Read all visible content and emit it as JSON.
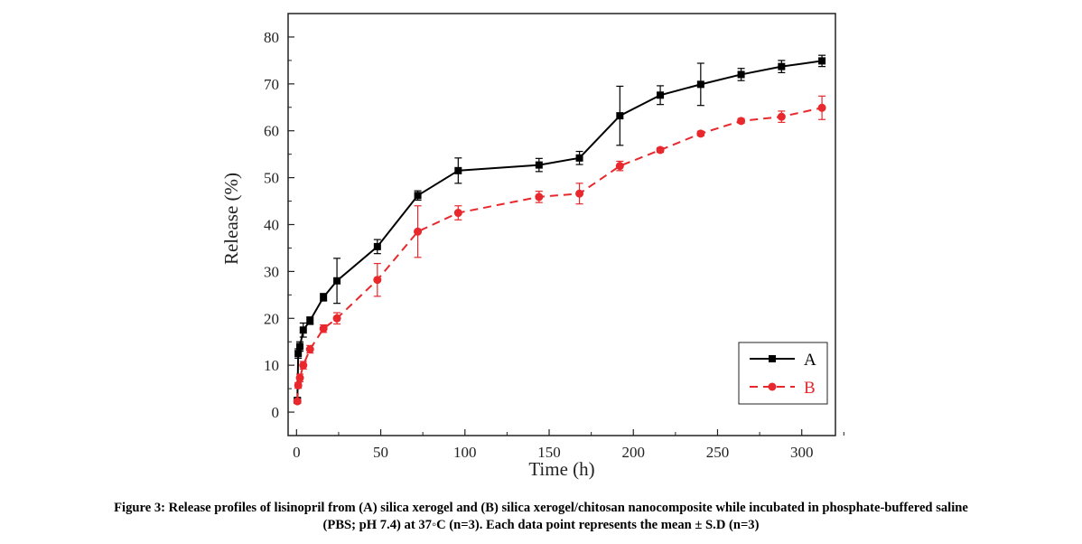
{
  "chart_data": {
    "type": "line",
    "title": "",
    "xlabel": "Time (h)",
    "ylabel": "Release (%)",
    "xlim": [
      -5,
      320
    ],
    "ylim": [
      -5,
      85
    ],
    "xticks": [
      0,
      50,
      100,
      150,
      200,
      250,
      300
    ],
    "yticks": [
      0,
      10,
      20,
      30,
      40,
      50,
      60,
      70,
      80
    ],
    "grid": false,
    "legend_position": "bottom-right",
    "series": [
      {
        "name": "A",
        "color": "#000000",
        "line_style": "solid",
        "marker": "square",
        "x": [
          0.5,
          1,
          2,
          4,
          8,
          16,
          24,
          48,
          72,
          96,
          144,
          168,
          192,
          216,
          240,
          264,
          288,
          312
        ],
        "y": [
          2.5,
          12.5,
          14.0,
          17.5,
          19.5,
          24.5,
          28.0,
          35.3,
          46.2,
          51.5,
          52.7,
          54.2,
          63.2,
          67.6,
          69.9,
          72.0,
          73.7,
          74.9
        ],
        "err": [
          0.5,
          1.0,
          1.0,
          1.5,
          0.8,
          0.8,
          4.8,
          1.5,
          1.0,
          2.7,
          1.4,
          1.4,
          6.3,
          2.0,
          4.5,
          1.3,
          1.3,
          1.2
        ]
      },
      {
        "name": "B",
        "color": "#e8282c",
        "line_style": "dashed",
        "marker": "circle",
        "x": [
          0.5,
          1,
          2,
          4,
          8,
          16,
          24,
          48,
          72,
          96,
          144,
          168,
          192,
          216,
          240,
          264,
          288,
          312
        ],
        "y": [
          2.3,
          5.7,
          7.3,
          10.0,
          13.4,
          17.8,
          20.0,
          28.2,
          38.5,
          42.5,
          45.9,
          46.6,
          52.5,
          55.9,
          59.4,
          62.1,
          63.0,
          64.9
        ],
        "err": [
          0.4,
          0.6,
          0.8,
          0.8,
          0.8,
          0.8,
          1.2,
          3.5,
          5.5,
          1.5,
          1.2,
          2.2,
          1.0,
          0.5,
          0.5,
          0.5,
          1.2,
          2.5
        ]
      }
    ]
  },
  "caption": {
    "line1": "Figure 3: Release profiles of lisinopril from (A) silica xerogel and (B) silica xerogel/chitosan nanocomposite while incubated in phosphate-buffered saline",
    "line2": "(PBS; pH 7.4) at 37◦C (n=3). Each data point represents the mean ± S.D (n=3)"
  }
}
